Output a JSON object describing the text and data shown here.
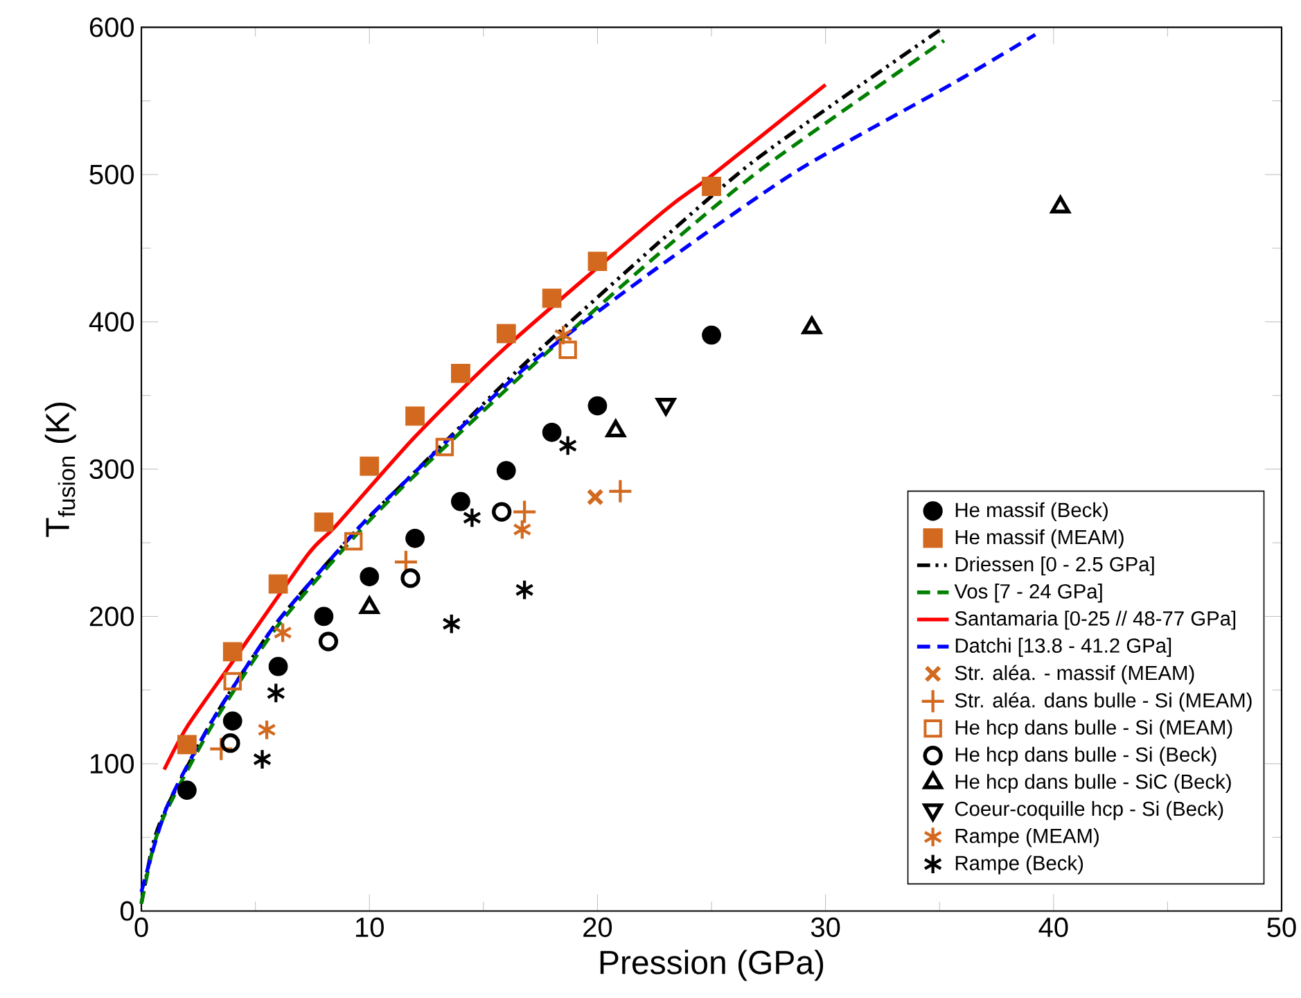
{
  "chart_data": {
    "type": "scatter",
    "xlabel": "Pression (GPa)",
    "ylabel": "T$_{fusion}$ (K)",
    "xlim": [
      0,
      50
    ],
    "ylim": [
      0,
      600
    ],
    "xticks": [
      0,
      10,
      20,
      30,
      40,
      50
    ],
    "yticks": [
      0,
      100,
      200,
      300,
      400,
      500,
      600
    ],
    "grid": false,
    "legend": "bottom right",
    "series": [
      {
        "name": "He massif (Beck)",
        "marker": "circle",
        "color": "#000000",
        "x": [
          2,
          4,
          6,
          8,
          10,
          12,
          14,
          16,
          18,
          20,
          25
        ],
        "values": [
          82,
          129,
          166,
          200,
          227,
          253,
          278,
          299,
          325,
          343,
          391
        ]
      },
      {
        "name": "He massif (MEAM)",
        "marker": "square",
        "color": "#d2691e",
        "x": [
          2,
          4,
          6,
          8,
          10,
          12,
          14,
          16,
          18,
          20,
          25
        ],
        "values": [
          113,
          176,
          222,
          264,
          302,
          336,
          365,
          392,
          416,
          441,
          492
        ]
      },
      {
        "name": "Driessen [0 - 2.5 GPa]",
        "type": "line",
        "line_style": "dashdotted",
        "marker": "none",
        "color": "#000000",
        "x": [
          0,
          0.5,
          1.1,
          3.1,
          5.9,
          9.4,
          11.6,
          16.7,
          22.7,
          27.1,
          35
        ],
        "values": [
          5,
          45,
          70,
          129,
          195,
          258,
          292,
          370,
          454,
          512,
          598
        ]
      },
      {
        "name": "Vos [7 - 24 GPa]",
        "type": "line",
        "line_style": "dashed",
        "marker": "none",
        "color": "#008000",
        "x": [
          0,
          0.5,
          1.1,
          3.1,
          5.9,
          9.4,
          11.6,
          16.7,
          22.3,
          27.3,
          35.2
        ],
        "values": [
          5,
          42,
          68,
          126,
          192,
          255,
          290,
          364,
          441,
          505,
          591
        ]
      },
      {
        "name": "Santamaria [0-25 // 48-77 GPa]",
        "type": "line",
        "line_style": "solid",
        "marker": "none",
        "color": "#ff0000",
        "x": [
          1,
          2,
          3.9,
          7.3,
          8.5,
          12,
          16,
          22.9,
          24.9,
          30
        ],
        "values": [
          96,
          125,
          167,
          242,
          261,
          322,
          383,
          475,
          498,
          561
        ]
      },
      {
        "name": "Datchi [13.8 - 41.2 GPa]",
        "type": "line",
        "line_style": "dashed",
        "marker": "none",
        "color": "#0000ff",
        "x": [
          0,
          1.1,
          3.1,
          5.9,
          9.4,
          11.6,
          16.7,
          22.3,
          28.7,
          35.6,
          39.2
        ],
        "values": [
          13,
          70,
          129,
          195,
          258,
          292,
          367,
          433,
          502,
          562,
          595
        ]
      },
      {
        "name": "Str. aléa. - massif (MEAM)",
        "type": "scatter",
        "marker": "x",
        "color": "#d2691e",
        "x": [
          19.9
        ],
        "values": [
          281
        ]
      },
      {
        "name": "Str. aléa. dans bulle - Si (MEAM)",
        "type": "scatter",
        "marker": "plus",
        "color": "#d2691e",
        "x": [
          3.5,
          11.6,
          16.8,
          21
        ],
        "values": [
          110,
          237,
          271,
          285
        ]
      },
      {
        "name": "He hcp dans bulle - Si (MEAM)",
        "type": "scatter",
        "marker": "square_open",
        "color": "#d2691e",
        "x": [
          4,
          9.3,
          13.3,
          18.7
        ],
        "values": [
          156,
          251,
          315,
          381
        ]
      },
      {
        "name": "He hcp dans bulle - Si (Beck)",
        "type": "scatter",
        "marker": "circle_open",
        "color": "#000000",
        "x": [
          3.9,
          8.2,
          11.8,
          15.8
        ],
        "values": [
          114,
          183,
          226,
          271
        ]
      },
      {
        "name": "He hcp dans bulle - SiC (Beck)",
        "type": "scatter",
        "marker": "triangle_open",
        "color": "#000000",
        "x": [
          10,
          20.8,
          29.4,
          40.3
        ],
        "values": [
          206,
          326,
          396,
          478
        ]
      },
      {
        "name": "Coeur-coquille hcp - Si (Beck)",
        "type": "scatter",
        "marker": "triangle_down_open",
        "color": "#000000",
        "x": [
          23
        ],
        "values": [
          344
        ]
      },
      {
        "name": "Rampe (MEAM)",
        "marker": "cross",
        "color": "#d2691e",
        "x": [
          5.5,
          6.2,
          16.7,
          18.5
        ],
        "values": [
          123,
          189,
          259,
          391
        ]
      },
      {
        "name": "Rampe  (Beck)",
        "marker": "cross",
        "color": "#000000",
        "x": [
          5.3,
          5.9,
          13.6,
          14.5,
          16.8,
          18.7
        ],
        "values": [
          103,
          148,
          195,
          267,
          218,
          316
        ]
      }
    ]
  }
}
